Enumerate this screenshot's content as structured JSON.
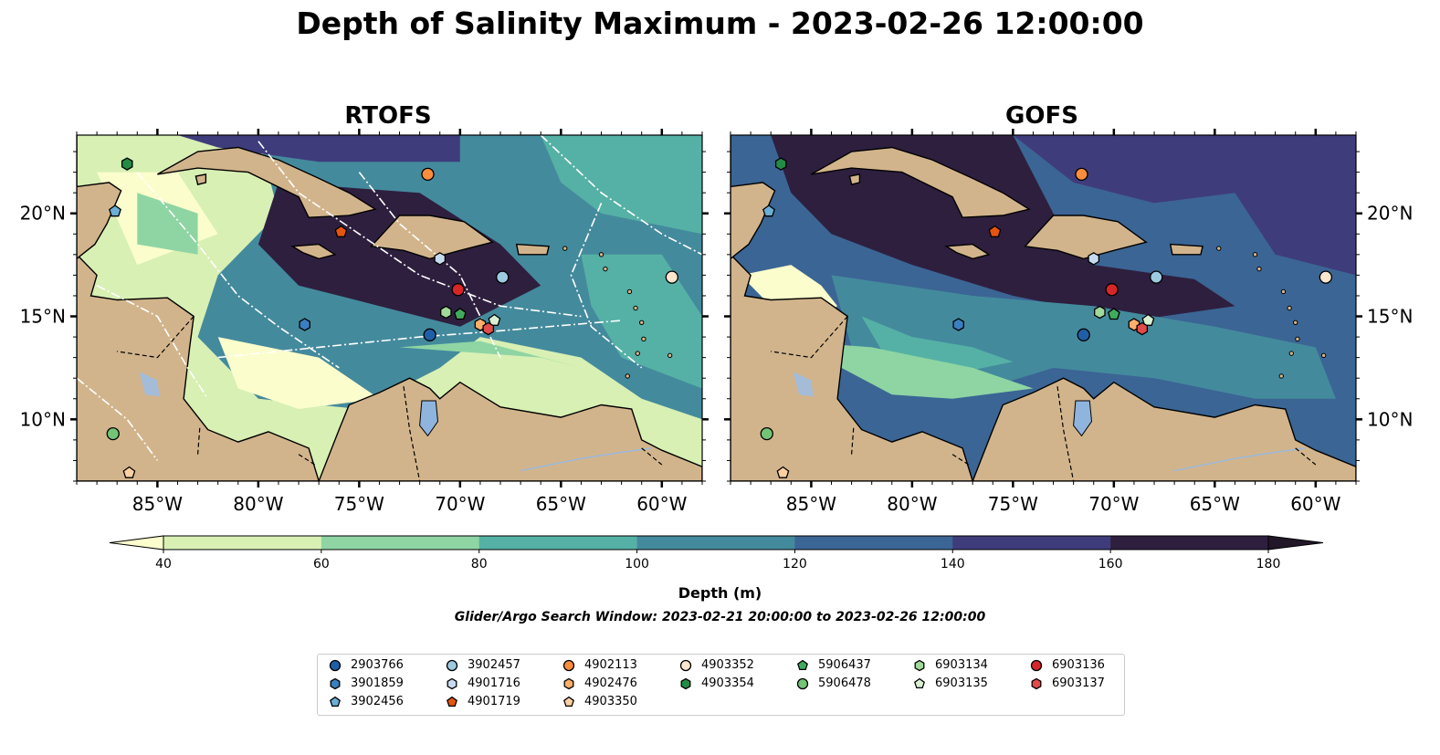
{
  "title": "Depth of Salinity Maximum - 2023-02-26 12:00:00",
  "panels": [
    {
      "name": "RTOFS"
    },
    {
      "name": "GOFS"
    }
  ],
  "map_extent": {
    "lon": [
      -89,
      -58
    ],
    "lat": [
      7,
      23.8
    ]
  },
  "lon_ticks": [
    {
      "value": -85,
      "label": "85°W"
    },
    {
      "value": -80,
      "label": "80°W"
    },
    {
      "value": -75,
      "label": "75°W"
    },
    {
      "value": -70,
      "label": "70°W"
    },
    {
      "value": -65,
      "label": "65°W"
    },
    {
      "value": -60,
      "label": "60°W"
    }
  ],
  "lat_ticks": [
    {
      "value": 20,
      "label": "20°N"
    },
    {
      "value": 15,
      "label": "15°N"
    },
    {
      "value": 10,
      "label": "10°N"
    }
  ],
  "colorbar": {
    "label": "Depth (m)",
    "ticks": [
      40,
      60,
      80,
      100,
      120,
      140,
      160,
      180
    ],
    "colors": [
      "#d8f0b4",
      "#8ed5a3",
      "#55b1a5",
      "#448a9d",
      "#3b6594",
      "#3f3c7c",
      "#2e1f3f"
    ],
    "under_color": "#fbfdcc",
    "over_color": "#221729"
  },
  "land_color": "#d2b48c",
  "search_window": "Glider/Argo Search Window: 2023-02-21 20:00:00 to 2023-02-26 12:00:00",
  "legend": [
    {
      "id": "2903766",
      "marker": "circle",
      "color": "#1f5fa8"
    },
    {
      "id": "3901859",
      "marker": "hexagon",
      "color": "#3a7fc0"
    },
    {
      "id": "3902456",
      "marker": "pentagon",
      "color": "#6baed6"
    },
    {
      "id": "3902457",
      "marker": "circle",
      "color": "#9ecae1"
    },
    {
      "id": "4901716",
      "marker": "hexagon",
      "color": "#c6dbef"
    },
    {
      "id": "4901719",
      "marker": "pentagon",
      "color": "#e6550d"
    },
    {
      "id": "4902113",
      "marker": "circle",
      "color": "#fd8d3c"
    },
    {
      "id": "4902476",
      "marker": "hexagon",
      "color": "#fdae6b"
    },
    {
      "id": "4903350",
      "marker": "pentagon",
      "color": "#fdd0a2"
    },
    {
      "id": "4903352",
      "marker": "circle",
      "color": "#fee6ce"
    },
    {
      "id": "4903354",
      "marker": "hexagon",
      "color": "#238b45"
    },
    {
      "id": "5906437",
      "marker": "pentagon",
      "color": "#41ab5d"
    },
    {
      "id": "5906478",
      "marker": "circle",
      "color": "#74c476"
    },
    {
      "id": "6903134",
      "marker": "hexagon",
      "color": "#a1d99b"
    },
    {
      "id": "6903135",
      "marker": "pentagon",
      "color": "#d9f0d3"
    },
    {
      "id": "6903136",
      "marker": "circle",
      "color": "#d62728"
    },
    {
      "id": "6903137",
      "marker": "hexagon",
      "color": "#e34a4a"
    }
  ],
  "floats": [
    {
      "id": "4903354",
      "lon": -86.5,
      "lat": 22.4
    },
    {
      "id": "3902456",
      "lon": -87.1,
      "lat": 20.1
    },
    {
      "id": "4902113",
      "lon": -71.6,
      "lat": 21.9
    },
    {
      "id": "4901719",
      "lon": -75.9,
      "lat": 19.1
    },
    {
      "id": "4901716",
      "lon": -71.0,
      "lat": 17.8
    },
    {
      "id": "3902457",
      "lon": -67.9,
      "lat": 16.9
    },
    {
      "id": "4903352",
      "lon": -59.5,
      "lat": 16.9
    },
    {
      "id": "6903136",
      "lon": -70.1,
      "lat": 16.3
    },
    {
      "id": "3901859",
      "lon": -77.7,
      "lat": 14.6
    },
    {
      "id": "6903134",
      "lon": -70.7,
      "lat": 15.2
    },
    {
      "id": "5906437",
      "lon": -70.0,
      "lat": 15.1
    },
    {
      "id": "2903766",
      "lon": -71.5,
      "lat": 14.1
    },
    {
      "id": "4902476",
      "lon": -69.0,
      "lat": 14.6
    },
    {
      "id": "6903135",
      "lon": -68.3,
      "lat": 14.8
    },
    {
      "id": "6903137",
      "lon": -68.6,
      "lat": 14.4
    },
    {
      "id": "5906478",
      "lon": -87.2,
      "lat": 9.3
    },
    {
      "id": "4903350",
      "lon": -86.4,
      "lat": 7.4
    }
  ]
}
